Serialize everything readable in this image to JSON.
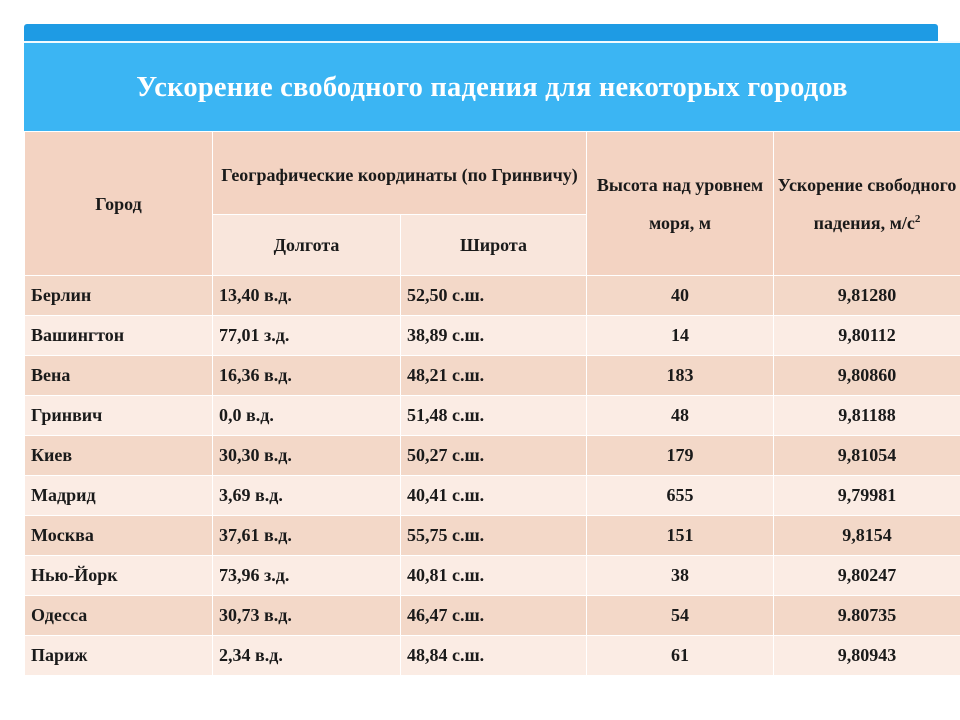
{
  "title": "Ускорение свободного падения для некоторых городов",
  "headers": {
    "city": "Город",
    "geo": "Географические координаты (по Гринвичу)",
    "longitude": "Долгота",
    "latitude": "Широта",
    "altitude": "Высота над уровнем моря, м",
    "acceleration": "Ускорение свободного падения, м/с",
    "acceleration_sup": "2"
  },
  "rows": [
    {
      "city": "Берлин",
      "lon": "13,40 в.д.",
      "lat": "52,50 с.ш.",
      "alt": "40",
      "acc": "9,81280"
    },
    {
      "city": "Вашингтон",
      "lon": "77,01 з.д.",
      "lat": "38,89 с.ш.",
      "alt": "14",
      "acc": "9,80112"
    },
    {
      "city": "Вена",
      "lon": "16,36 в.д.",
      "lat": "48,21 с.ш.",
      "alt": "183",
      "acc": "9,80860"
    },
    {
      "city": "Гринвич",
      "lon": "0,0 в.д.",
      "lat": "51,48 с.ш.",
      "alt": "48",
      "acc": "9,81188"
    },
    {
      "city": "Киев",
      "lon": "30,30 в.д.",
      "lat": "50,27 с.ш.",
      "alt": "179",
      "acc": "9,81054"
    },
    {
      "city": "Мадрид",
      "lon": "3,69 в.д.",
      "lat": "40,41 с.ш.",
      "alt": "655",
      "acc": "9,79981"
    },
    {
      "city": "Москва",
      "lon": "37,61 в.д.",
      "lat": "55,75 с.ш.",
      "alt": "151",
      "acc": "9,8154"
    },
    {
      "city": "Нью-Йорк",
      "lon": "73,96 з.д.",
      "lat": "40,81 с.ш.",
      "alt": "38",
      "acc": "9,80247"
    },
    {
      "city": "Одесса",
      "lon": "30,73 в.д.",
      "lat": "46,47 с.ш.",
      "alt": "54",
      "acc": "9.80735"
    },
    {
      "city": "Париж",
      "lon": "2,34 в.д.",
      "lat": "48,84 с.ш.",
      "alt": "61",
      "acc": "9,80943"
    }
  ]
}
